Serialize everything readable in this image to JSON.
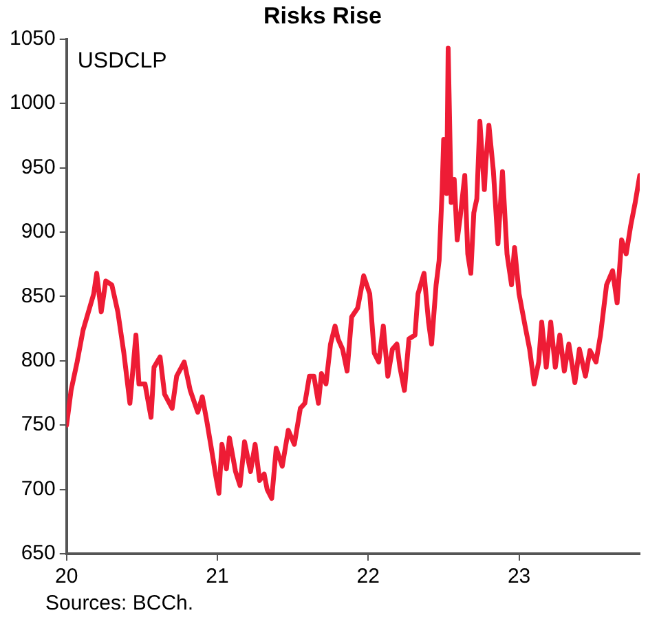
{
  "chart_data": {
    "type": "line",
    "title": "Risks Rise",
    "annotations": [
      "USDCLP",
      "Sources: BCCh."
    ],
    "xlim": [
      20,
      23.8
    ],
    "xticks": [
      20,
      21,
      22,
      23
    ],
    "ylim": [
      650,
      1050
    ],
    "yticks": [
      650,
      700,
      750,
      800,
      850,
      900,
      950,
      1000,
      1050
    ],
    "grid": false,
    "legend": false,
    "marker": "none",
    "line_style": "solid",
    "series": [
      {
        "color": "#ee1c35",
        "x": [
          20.0,
          20.03,
          20.07,
          20.11,
          20.18,
          20.2,
          20.23,
          20.26,
          20.3,
          20.34,
          20.38,
          20.42,
          20.46,
          20.48,
          20.52,
          20.56,
          20.58,
          20.62,
          20.65,
          20.7,
          20.73,
          20.78,
          20.82,
          20.87,
          20.9,
          20.93,
          20.96,
          20.99,
          21.01,
          21.03,
          21.06,
          21.08,
          21.12,
          21.15,
          21.18,
          21.22,
          21.25,
          21.28,
          21.31,
          21.33,
          21.36,
          21.39,
          21.43,
          21.47,
          21.51,
          21.55,
          21.58,
          21.61,
          21.64,
          21.67,
          21.69,
          21.72,
          21.75,
          21.78,
          21.8,
          21.83,
          21.86,
          21.89,
          21.93,
          21.97,
          22.01,
          22.04,
          22.07,
          22.1,
          22.13,
          22.16,
          22.19,
          22.21,
          22.24,
          22.27,
          22.31,
          22.33,
          22.37,
          22.4,
          22.42,
          22.45,
          22.47,
          22.48,
          22.49,
          22.5,
          22.52,
          22.53,
          22.55,
          22.57,
          22.59,
          22.61,
          22.64,
          22.66,
          22.68,
          22.7,
          22.72,
          22.74,
          22.77,
          22.78,
          22.8,
          22.83,
          22.86,
          22.89,
          22.92,
          22.95,
          22.97,
          23.0,
          23.04,
          23.07,
          23.1,
          23.13,
          23.15,
          23.18,
          23.21,
          23.24,
          23.27,
          23.3,
          23.33,
          23.37,
          23.4,
          23.44,
          23.47,
          23.51,
          23.54,
          23.58,
          23.62,
          23.65,
          23.68,
          23.71,
          23.74,
          23.77,
          23.8
        ],
        "values": [
          750,
          777,
          799,
          824,
          852,
          868,
          838,
          862,
          859,
          838,
          806,
          767,
          820,
          782,
          782,
          756,
          795,
          803,
          774,
          763,
          788,
          799,
          777,
          760,
          772,
          753,
          732,
          710,
          697,
          735,
          716,
          740,
          714,
          703,
          737,
          714,
          735,
          707,
          712,
          700,
          693,
          732,
          718,
          746,
          735,
          763,
          767,
          788,
          788,
          767,
          790,
          782,
          813,
          827,
          817,
          809,
          792,
          834,
          841,
          866,
          852,
          806,
          799,
          827,
          788,
          809,
          813,
          795,
          777,
          817,
          820,
          852,
          868,
          830,
          813,
          859,
          878,
          905,
          933,
          972,
          930,
          1043,
          923,
          941,
          894,
          912,
          944,
          883,
          868,
          915,
          926,
          986,
          933,
          955,
          983,
          947,
          891,
          947,
          883,
          859,
          888,
          852,
          827,
          809,
          782,
          799,
          830,
          795,
          830,
          795,
          820,
          792,
          813,
          783,
          809,
          788,
          808,
          799,
          820,
          859,
          870,
          845,
          894,
          883,
          905,
          923,
          944
        ]
      }
    ]
  }
}
